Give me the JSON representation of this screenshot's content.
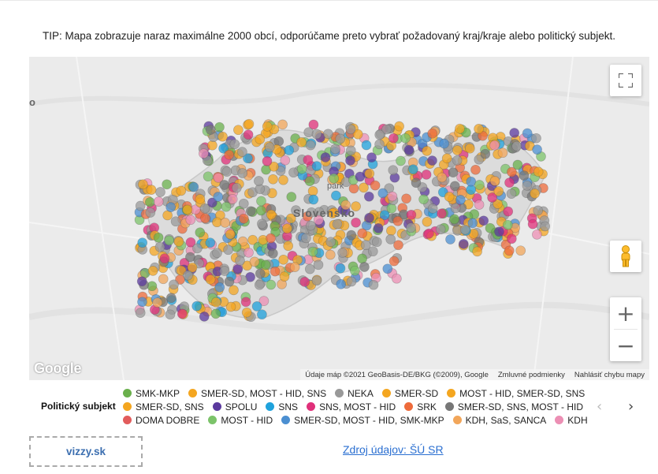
{
  "tip": "TIP: Mapa zobrazuje naraz maximálne 2000 obcí, odporúčame preto vybrať požadovaný kraj/kraje alebo politický subjekt.",
  "map": {
    "place_labels": [
      "Slovensko",
      "park"
    ],
    "edge_label": "o",
    "google_logo": "Google",
    "attribution": {
      "data": "Údaje máp ©2021 GeoBasis-DE/BKG (©2009), Google",
      "terms": "Zmluvné podmienky",
      "report": "Nahlásiť chybu mapy"
    },
    "controls": {
      "fullscreen_icon": "fullscreen-icon",
      "pegman_icon": "pegman-icon",
      "zoom_in": "+",
      "zoom_out": "−"
    }
  },
  "legend": {
    "title": "Politický subjekt",
    "rows": [
      [
        {
          "label": "SMK-MKP",
          "color": "#6ab04c"
        },
        {
          "label": "SMER-SD, MOST - HID, SNS",
          "color": "#f4a620"
        },
        {
          "label": "NEKA",
          "color": "#999999"
        },
        {
          "label": "SMER-SD",
          "color": "#f4a620"
        },
        {
          "label": "MOST - HID, SMER-SD, SNS",
          "color": "#f4a620"
        }
      ],
      [
        {
          "label": "SMER-SD, SNS",
          "color": "#f4a620"
        },
        {
          "label": "SPOLU",
          "color": "#5b3a9e"
        },
        {
          "label": "SNS",
          "color": "#1fa2dc"
        },
        {
          "label": "SNS, MOST - HID",
          "color": "#e0307a"
        },
        {
          "label": "SRK",
          "color": "#ee6b3b"
        },
        {
          "label": "SMER-SD, SNS, MOST - HID",
          "color": "#777777"
        }
      ],
      [
        {
          "label": "DOMA DOBRE",
          "color": "#e25c5c"
        },
        {
          "label": "MOST - HID",
          "color": "#7cc36a"
        },
        {
          "label": "SMER-SD, MOST - HID, SMK-MKP",
          "color": "#4b8fd1"
        },
        {
          "label": "KDH, SaS, SANCA",
          "color": "#f2a65a"
        },
        {
          "label": "KDH",
          "color": "#ec8fb4"
        }
      ]
    ],
    "prev": "‹",
    "next": "›"
  },
  "footer": {
    "brand": "vizzy.sk",
    "source_link": "Zdroj údajov: ŠÚ SR"
  }
}
